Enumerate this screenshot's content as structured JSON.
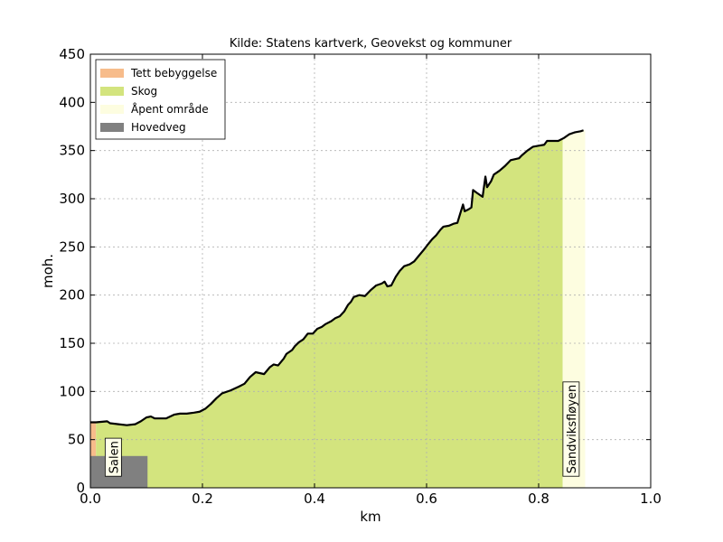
{
  "chart_data": {
    "type": "area",
    "title": "Kilde: Statens kartverk, Geovekst og kommuner",
    "xlabel": "km",
    "ylabel": "moh.",
    "xlim": [
      0.0,
      1.0
    ],
    "ylim": [
      0,
      450
    ],
    "xticks": [
      "0.0",
      "0.2",
      "0.4",
      "0.6",
      "0.8",
      "1.0"
    ],
    "yticks": [
      "0",
      "50",
      "100",
      "150",
      "200",
      "250",
      "300",
      "350",
      "400",
      "450"
    ],
    "grid": true,
    "legend_position": "top-left",
    "colors": {
      "tett": "#f7bc8b",
      "skog": "#d3e47e",
      "apent": "#fdfde0",
      "hovedveg": "#808080",
      "profile": "#000000"
    },
    "series": [
      {
        "name": "Tett bebyggelse",
        "key": "tett"
      },
      {
        "name": "Skog",
        "key": "skog"
      },
      {
        "name": "Åpent område",
        "key": "apent"
      },
      {
        "name": "Hovedveg",
        "key": "hovedveg"
      }
    ],
    "landcover": [
      {
        "key": "tett",
        "x0": 0.0,
        "x1": 0.01
      },
      {
        "key": "skog",
        "x0": 0.01,
        "x1": 0.843
      },
      {
        "key": "apent",
        "x0": 0.843,
        "x1": 0.883
      }
    ],
    "road_band": {
      "key": "hovedveg",
      "x0": 0.0,
      "x1": 0.102,
      "height": 33
    },
    "profile": [
      [
        0.0,
        68
      ],
      [
        0.01,
        68
      ],
      [
        0.03,
        69
      ],
      [
        0.035,
        67
      ],
      [
        0.05,
        66
      ],
      [
        0.065,
        65
      ],
      [
        0.08,
        66
      ],
      [
        0.09,
        69
      ],
      [
        0.1,
        73
      ],
      [
        0.108,
        74
      ],
      [
        0.115,
        72
      ],
      [
        0.135,
        72
      ],
      [
        0.15,
        76
      ],
      [
        0.16,
        77
      ],
      [
        0.172,
        77
      ],
      [
        0.185,
        78
      ],
      [
        0.195,
        79
      ],
      [
        0.205,
        82
      ],
      [
        0.215,
        87
      ],
      [
        0.225,
        93
      ],
      [
        0.235,
        98
      ],
      [
        0.25,
        101
      ],
      [
        0.265,
        105
      ],
      [
        0.275,
        108
      ],
      [
        0.285,
        115
      ],
      [
        0.295,
        120
      ],
      [
        0.31,
        118
      ],
      [
        0.32,
        125
      ],
      [
        0.327,
        128
      ],
      [
        0.335,
        127
      ],
      [
        0.345,
        134
      ],
      [
        0.35,
        139
      ],
      [
        0.36,
        143
      ],
      [
        0.365,
        147
      ],
      [
        0.372,
        151
      ],
      [
        0.38,
        154
      ],
      [
        0.388,
        160
      ],
      [
        0.397,
        160
      ],
      [
        0.405,
        165
      ],
      [
        0.413,
        167
      ],
      [
        0.42,
        170
      ],
      [
        0.43,
        173
      ],
      [
        0.437,
        176
      ],
      [
        0.445,
        178
      ],
      [
        0.453,
        183
      ],
      [
        0.46,
        190
      ],
      [
        0.465,
        193
      ],
      [
        0.47,
        198
      ],
      [
        0.48,
        200
      ],
      [
        0.49,
        199
      ],
      [
        0.5,
        205
      ],
      [
        0.51,
        210
      ],
      [
        0.52,
        212
      ],
      [
        0.525,
        214
      ],
      [
        0.53,
        209
      ],
      [
        0.537,
        210
      ],
      [
        0.545,
        219
      ],
      [
        0.552,
        225
      ],
      [
        0.56,
        230
      ],
      [
        0.57,
        232
      ],
      [
        0.578,
        235
      ],
      [
        0.585,
        240
      ],
      [
        0.595,
        247
      ],
      [
        0.603,
        253
      ],
      [
        0.61,
        258
      ],
      [
        0.617,
        262
      ],
      [
        0.625,
        268
      ],
      [
        0.63,
        271
      ],
      [
        0.64,
        272
      ],
      [
        0.648,
        274
      ],
      [
        0.655,
        275
      ],
      [
        0.665,
        294
      ],
      [
        0.668,
        287
      ],
      [
        0.675,
        289
      ],
      [
        0.68,
        291
      ],
      [
        0.683,
        309
      ],
      [
        0.69,
        306
      ],
      [
        0.7,
        302
      ],
      [
        0.705,
        323
      ],
      [
        0.708,
        312
      ],
      [
        0.715,
        318
      ],
      [
        0.72,
        325
      ],
      [
        0.73,
        329
      ],
      [
        0.74,
        334
      ],
      [
        0.75,
        340
      ],
      [
        0.765,
        342
      ],
      [
        0.77,
        345
      ],
      [
        0.78,
        350
      ],
      [
        0.79,
        354
      ],
      [
        0.8,
        355
      ],
      [
        0.81,
        356
      ],
      [
        0.815,
        360
      ],
      [
        0.835,
        360
      ],
      [
        0.845,
        363
      ],
      [
        0.855,
        367
      ],
      [
        0.865,
        369
      ],
      [
        0.875,
        370
      ],
      [
        0.88,
        371
      ]
    ],
    "place_labels": [
      {
        "text": "Salen",
        "x": 0.028,
        "y": 12
      },
      {
        "text": "Sandviksfløyen",
        "x": 0.845,
        "y": 12
      }
    ]
  }
}
